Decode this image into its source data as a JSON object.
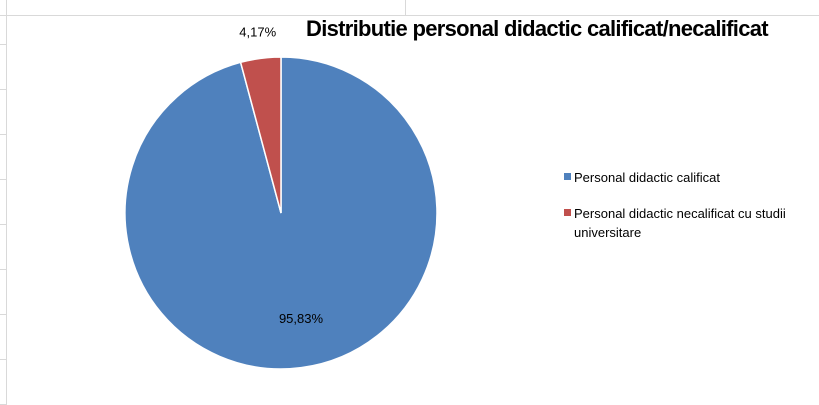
{
  "chart_data": {
    "type": "pie",
    "title": "Distributie personal didactic calificat/necalificat",
    "slices": [
      {
        "label": "Personal didactic calificat",
        "value": 95.83,
        "value_label": "95,83%",
        "color": "#4f81bd"
      },
      {
        "label": "Personal didactic necalificat cu studii universitare",
        "value": 4.17,
        "value_label": "4,17%",
        "color": "#c0504d"
      }
    ],
    "legend_position": "right"
  }
}
